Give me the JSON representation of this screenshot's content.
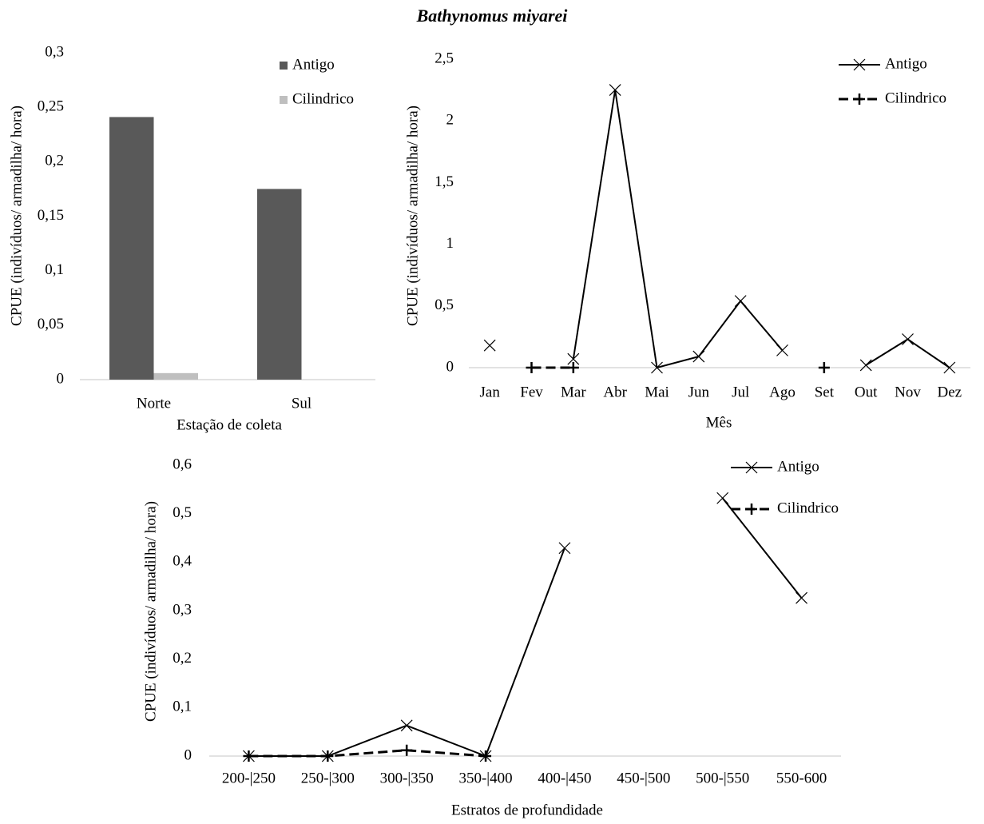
{
  "title": "Bathynomus miyarei",
  "chart_data": [
    {
      "type": "bar",
      "ylabel": "CPUE (indivíduos/  armadilha/  hora)",
      "xlabel": "Estação  de coleta",
      "categories": [
        "Norte",
        "Sul"
      ],
      "series": [
        {
          "name": "Antigo",
          "color": "#595959",
          "values": [
            0.241,
            0.175
          ]
        },
        {
          "name": "Cilindrico",
          "color": "#bfbfbf",
          "values": [
            0.006,
            0
          ]
        }
      ],
      "ylim": [
        0,
        0.3
      ],
      "yticks": [
        0,
        {
          "value": 0.05,
          "label": "0,05"
        },
        {
          "value": 0.1,
          "label": "0,1"
        },
        {
          "value": 0.15,
          "label": "0,15"
        },
        {
          "value": 0.2,
          "label": "0,2"
        },
        {
          "value": 0.25,
          "label": "0,25"
        },
        {
          "value": 0.3,
          "label": "0,3"
        }
      ],
      "grid": false,
      "legend": "top-right"
    },
    {
      "type": "line",
      "ylabel": "CPUE (indivíduos/  armadilha/  hora)",
      "xlabel": "Mês",
      "categories": [
        "Jan",
        "Fev",
        "Mar",
        "Abr",
        "Mai",
        "Jun",
        "Jul",
        "Ago",
        "Set",
        "Out",
        "Nov",
        "Dez"
      ],
      "series": [
        {
          "name": "Antigo",
          "color": "#000000",
          "marker": "x",
          "dashed": false,
          "values": [
            0.18,
            null,
            0.07,
            2.25,
            0,
            0.09,
            0.54,
            0.14,
            null,
            0.02,
            0.23,
            0
          ]
        },
        {
          "name": "Cilindrico",
          "color": "#000000",
          "marker": "+",
          "dashed": true,
          "values": [
            null,
            0,
            0,
            null,
            null,
            null,
            null,
            null,
            0,
            null,
            null,
            null
          ]
        }
      ],
      "ylim": [
        0,
        2.5
      ],
      "yticks": [
        0,
        {
          "value": 0.5,
          "label": "0,5"
        },
        1,
        {
          "value": 1.5,
          "label": "1,5"
        },
        2,
        {
          "value": 2.5,
          "label": "2,5"
        }
      ],
      "grid": false,
      "legend": "top-right"
    },
    {
      "type": "line",
      "ylabel": "CPUE (indivíduos/  armadilha/  hora)",
      "xlabel": "Estratos  de profundidade",
      "categories": [
        "200-|250",
        "250-|300",
        "300-|350",
        "350-|400",
        "400-|450",
        "450-|500",
        "500-|550",
        "550-600"
      ],
      "series": [
        {
          "name": "Antigo",
          "color": "#000000",
          "marker": "x",
          "dashed": false,
          "values": [
            0,
            0,
            0.063,
            0,
            0.429,
            null,
            0.532,
            0.326
          ]
        },
        {
          "name": "Cilindrico",
          "color": "#000000",
          "marker": "+",
          "dashed": true,
          "values": [
            0,
            0,
            0.012,
            0,
            null,
            null,
            null,
            null
          ]
        }
      ],
      "ylim": [
        0,
        0.6
      ],
      "yticks": [
        0,
        {
          "value": 0.1,
          "label": "0,1"
        },
        {
          "value": 0.2,
          "label": "0,2"
        },
        {
          "value": 0.3,
          "label": "0,3"
        },
        {
          "value": 0.4,
          "label": "0,4"
        },
        {
          "value": 0.5,
          "label": "0,5"
        },
        {
          "value": 0.6,
          "label": "0,6"
        }
      ],
      "grid": false,
      "legend": "top-right"
    }
  ]
}
